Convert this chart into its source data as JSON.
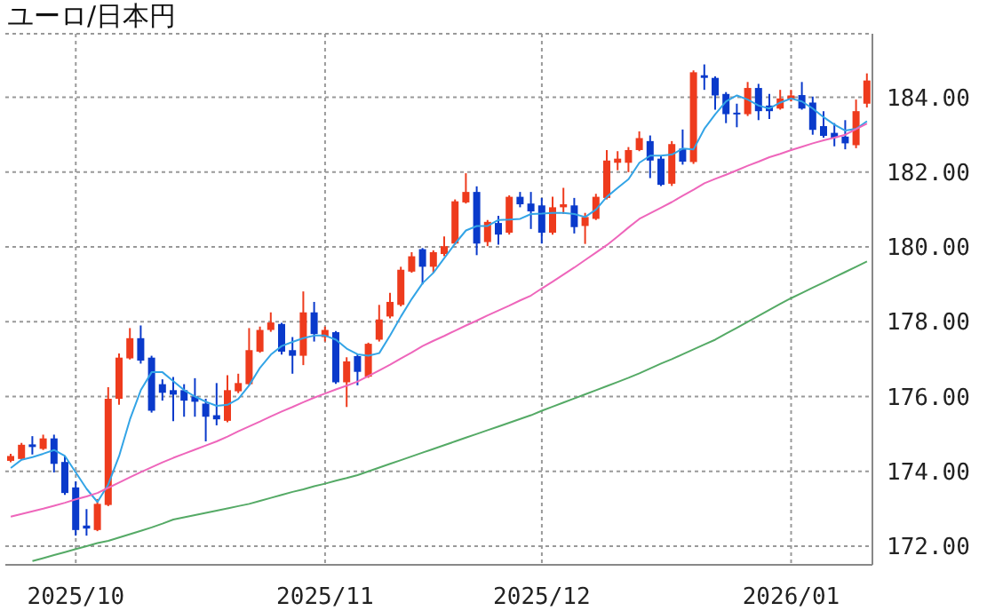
{
  "chart_data": {
    "type": "candlestick",
    "title": "ユーロ/日本円",
    "categories": [
      null,
      null,
      null,
      null,
      null,
      null,
      "2025/10",
      null,
      null,
      null,
      null,
      null,
      null,
      null,
      null,
      null,
      null,
      null,
      null,
      null,
      null,
      null,
      null,
      null,
      null,
      null,
      null,
      null,
      null,
      "2025/11",
      null,
      null,
      null,
      null,
      null,
      null,
      null,
      null,
      null,
      null,
      null,
      null,
      null,
      null,
      null,
      null,
      null,
      null,
      null,
      "2025/12",
      null,
      null,
      null,
      null,
      null,
      null,
      null,
      null,
      null,
      null,
      null,
      null,
      null,
      null,
      null,
      null,
      null,
      null,
      null,
      null,
      null,
      null,
      "2026/01",
      null,
      null,
      null,
      null,
      null,
      null,
      null
    ],
    "ylim": [
      171.5,
      185.7
    ],
    "yticks": [
      {
        "value": 172,
        "label": "172.00"
      },
      {
        "value": 174,
        "label": "174.00"
      },
      {
        "value": 176,
        "label": "176.00"
      },
      {
        "value": 178,
        "label": "178.00"
      },
      {
        "value": 180,
        "label": "180.00"
      },
      {
        "value": 182,
        "label": "182.00"
      },
      {
        "value": 184,
        "label": "184.00"
      }
    ],
    "grid": true,
    "series": [
      {
        "ohlc": [
          [
            174.28,
            174.47,
            174.24,
            174.41
          ],
          [
            174.33,
            174.76,
            174.3,
            174.71
          ],
          [
            174.72,
            174.94,
            174.45,
            174.65
          ],
          [
            174.6,
            174.98,
            174.57,
            174.88
          ],
          [
            174.88,
            174.98,
            173.97,
            174.2
          ],
          [
            174.25,
            174.41,
            173.37,
            173.42
          ],
          [
            173.57,
            173.73,
            172.28,
            172.43
          ],
          [
            172.55,
            172.99,
            172.28,
            172.47
          ],
          [
            172.43,
            173.26,
            172.4,
            173.13
          ],
          [
            173.1,
            176.25,
            173.07,
            175.94
          ],
          [
            175.94,
            177.15,
            175.78,
            177.04
          ],
          [
            177.02,
            177.83,
            176.99,
            177.56
          ],
          [
            177.56,
            177.9,
            176.88,
            176.96
          ],
          [
            177.04,
            177.09,
            175.57,
            175.62
          ],
          [
            176.33,
            176.46,
            175.89,
            176.1
          ],
          [
            176.17,
            176.52,
            175.34,
            176.05
          ],
          [
            176.17,
            176.33,
            175.46,
            175.89
          ],
          [
            176.0,
            176.49,
            175.46,
            175.86
          ],
          [
            175.81,
            175.94,
            174.8,
            175.46
          ],
          [
            175.5,
            176.36,
            175.23,
            175.39
          ],
          [
            175.35,
            176.57,
            175.31,
            176.17
          ],
          [
            176.14,
            176.61,
            176.09,
            176.36
          ],
          [
            176.33,
            177.83,
            176.3,
            177.24
          ],
          [
            177.2,
            177.87,
            177.17,
            177.78
          ],
          [
            177.78,
            178.25,
            177.73,
            177.98
          ],
          [
            177.94,
            177.97,
            177.12,
            177.2
          ],
          [
            177.24,
            177.59,
            176.61,
            177.09
          ],
          [
            177.09,
            178.81,
            176.84,
            178.25
          ],
          [
            178.25,
            178.53,
            177.47,
            177.67
          ],
          [
            177.59,
            177.87,
            177.47,
            177.78
          ],
          [
            177.72,
            177.75,
            176.34,
            176.38
          ],
          [
            176.38,
            177.05,
            175.72,
            176.94
          ],
          [
            177.08,
            177.13,
            176.3,
            176.66
          ],
          [
            176.53,
            177.44,
            176.5,
            177.41
          ],
          [
            177.52,
            178.45,
            177.47,
            178.06
          ],
          [
            178.14,
            178.77,
            178.09,
            178.53
          ],
          [
            178.45,
            179.47,
            178.41,
            179.39
          ],
          [
            179.34,
            179.86,
            179.31,
            179.75
          ],
          [
            179.94,
            179.97,
            179.0,
            179.47
          ],
          [
            179.47,
            179.91,
            179.31,
            179.86
          ],
          [
            179.81,
            180.28,
            179.75,
            180.02
          ],
          [
            180.09,
            181.27,
            180.06,
            181.22
          ],
          [
            181.19,
            181.97,
            181.16,
            181.47
          ],
          [
            181.47,
            181.62,
            179.78,
            180.09
          ],
          [
            180.13,
            180.72,
            180.02,
            180.67
          ],
          [
            180.64,
            180.83,
            180.06,
            180.33
          ],
          [
            180.38,
            181.38,
            180.33,
            181.34
          ],
          [
            181.34,
            181.47,
            181.06,
            181.14
          ],
          [
            181.16,
            181.47,
            180.48,
            180.95
          ],
          [
            181.11,
            181.31,
            180.09,
            180.38
          ],
          [
            180.38,
            181.34,
            180.33,
            181.06
          ],
          [
            181.06,
            181.58,
            180.88,
            181.14
          ],
          [
            181.11,
            181.31,
            180.36,
            180.53
          ],
          [
            180.56,
            180.91,
            180.08,
            180.8
          ],
          [
            180.75,
            181.42,
            180.72,
            181.34
          ],
          [
            181.31,
            182.59,
            181.27,
            182.31
          ],
          [
            182.25,
            182.56,
            182.05,
            182.36
          ],
          [
            182.25,
            182.67,
            182.0,
            182.59
          ],
          [
            182.59,
            183.09,
            182.56,
            182.91
          ],
          [
            182.83,
            182.98,
            181.84,
            182.31
          ],
          [
            182.36,
            182.44,
            181.63,
            181.66
          ],
          [
            181.69,
            182.83,
            181.63,
            182.75
          ],
          [
            182.63,
            183.14,
            182.2,
            182.28
          ],
          [
            182.27,
            184.72,
            182.22,
            184.67
          ],
          [
            184.59,
            184.88,
            184.2,
            184.52
          ],
          [
            184.52,
            184.56,
            183.67,
            184.05
          ],
          [
            184.09,
            184.14,
            183.31,
            183.55
          ],
          [
            183.59,
            183.83,
            183.2,
            183.55
          ],
          [
            183.55,
            184.41,
            183.5,
            184.25
          ],
          [
            184.25,
            184.36,
            183.39,
            183.63
          ],
          [
            183.78,
            184.09,
            183.42,
            183.63
          ],
          [
            183.7,
            184.2,
            183.67,
            183.97
          ],
          [
            183.94,
            184.2,
            183.89,
            184.05
          ],
          [
            184.06,
            184.41,
            183.67,
            183.7
          ],
          [
            183.86,
            184.02,
            183.0,
            183.13
          ],
          [
            183.23,
            183.63,
            182.92,
            182.97
          ],
          [
            183.05,
            183.31,
            182.69,
            182.92
          ],
          [
            182.95,
            183.39,
            182.61,
            182.77
          ],
          [
            182.72,
            183.94,
            182.64,
            183.63
          ],
          [
            183.83,
            184.64,
            183.73,
            184.45
          ]
        ],
        "colors": [
          "#ee3b1d",
          "#ee3b1d",
          "#0a3acb",
          "#ee3b1d",
          "#0a3acb",
          "#0a3acb",
          "#0a3acb",
          "#0a3acb",
          "#ee3b1d",
          "#ee3b1d",
          "#ee3b1d",
          "#ee3b1d",
          "#0a3acb",
          "#0a3acb",
          "#0a3acb",
          "#0a3acb",
          "#0a3acb",
          "#0a3acb",
          "#0a3acb",
          "#0a3acb",
          "#ee3b1d",
          "#ee3b1d",
          "#ee3b1d",
          "#ee3b1d",
          "#ee3b1d",
          "#0a3acb",
          "#0a3acb",
          "#ee3b1d",
          "#0a3acb",
          "#ee3b1d",
          "#0a3acb",
          "#ee3b1d",
          "#0a3acb",
          "#ee3b1d",
          "#ee3b1d",
          "#ee3b1d",
          "#ee3b1d",
          "#ee3b1d",
          "#0a3acb",
          "#ee3b1d",
          "#ee3b1d",
          "#ee3b1d",
          "#ee3b1d",
          "#0a3acb",
          "#ee3b1d",
          "#0a3acb",
          "#ee3b1d",
          "#0a3acb",
          "#0a3acb",
          "#0a3acb",
          "#ee3b1d",
          "#ee3b1d",
          "#0a3acb",
          "#ee3b1d",
          "#ee3b1d",
          "#ee3b1d",
          "#ee3b1d",
          "#ee3b1d",
          "#ee3b1d",
          "#0a3acb",
          "#0a3acb",
          "#ee3b1d",
          "#0a3acb",
          "#ee3b1d",
          "#0a3acb",
          "#0a3acb",
          "#0a3acb",
          "#0a3acb",
          "#ee3b1d",
          "#0a3acb",
          "#0a3acb",
          "#ee3b1d",
          "#ee3b1d",
          "#0a3acb",
          "#0a3acb",
          "#0a3acb",
          "#0a3acb",
          "#0a3acb",
          "#ee3b1d",
          "#ee3b1d"
        ]
      },
      {
        "type": "line",
        "color": "#33a4e6",
        "values": [
          174.09,
          174.31,
          174.38,
          174.47,
          174.57,
          174.41,
          173.97,
          173.53,
          173.18,
          173.65,
          174.41,
          175.39,
          176.17,
          176.65,
          176.65,
          176.41,
          176.17,
          176.0,
          175.86,
          175.75,
          175.78,
          175.94,
          176.3,
          176.77,
          177.12,
          177.35,
          177.46,
          177.56,
          177.63,
          177.63,
          177.52,
          177.28,
          177.13,
          177.09,
          177.16,
          177.63,
          178.14,
          178.61,
          179.03,
          179.31,
          179.7,
          180.09,
          180.44,
          180.56,
          180.56,
          180.72,
          180.73,
          180.75,
          180.88,
          180.89,
          180.91,
          180.91,
          180.88,
          180.8,
          181.0,
          181.34,
          181.58,
          181.81,
          182.25,
          182.44,
          182.44,
          182.47,
          182.63,
          182.61,
          183.16,
          183.55,
          183.89,
          184.05,
          183.94,
          183.78,
          183.7,
          183.86,
          183.97,
          183.89,
          183.7,
          183.47,
          183.27,
          183.11,
          183.16,
          183.36
        ]
      },
      {
        "type": "line",
        "color": "#ee66bb",
        "values": [
          172.79,
          172.86,
          172.93,
          173.0,
          173.08,
          173.16,
          173.25,
          173.33,
          173.42,
          173.56,
          173.7,
          173.84,
          173.98,
          174.11,
          174.24,
          174.36,
          174.47,
          174.58,
          174.69,
          174.8,
          174.93,
          175.07,
          175.2,
          175.33,
          175.47,
          175.6,
          175.72,
          175.85,
          175.97,
          176.08,
          176.19,
          176.29,
          176.4,
          176.55,
          176.7,
          176.85,
          177.02,
          177.18,
          177.35,
          177.49,
          177.62,
          177.76,
          177.9,
          178.03,
          178.17,
          178.3,
          178.43,
          178.57,
          178.7,
          178.89,
          179.07,
          179.26,
          179.45,
          179.65,
          179.85,
          180.05,
          180.28,
          180.52,
          180.75,
          180.9,
          181.05,
          181.2,
          181.37,
          181.53,
          181.7,
          181.82,
          181.93,
          182.05,
          182.17,
          182.28,
          182.4,
          182.49,
          182.59,
          182.68,
          182.77,
          182.85,
          182.92,
          183.0,
          183.15,
          183.3
        ]
      },
      {
        "type": "line",
        "color": "#55aa66",
        "values": [
          null,
          null,
          171.6,
          171.68,
          171.76,
          171.84,
          171.92,
          172.0,
          172.08,
          172.14,
          172.23,
          172.32,
          172.41,
          172.5,
          172.6,
          172.71,
          172.77,
          172.83,
          172.89,
          172.95,
          173.01,
          173.07,
          173.13,
          173.21,
          173.29,
          173.37,
          173.45,
          173.52,
          173.6,
          173.67,
          173.75,
          173.82,
          173.9,
          174.0,
          174.1,
          174.2,
          174.3,
          174.4,
          174.5,
          174.6,
          174.7,
          174.8,
          174.9,
          175.0,
          175.1,
          175.2,
          175.3,
          175.4,
          175.5,
          175.62,
          175.73,
          175.84,
          175.95,
          176.06,
          176.17,
          176.28,
          176.39,
          176.5,
          176.62,
          176.75,
          176.88,
          177.0,
          177.13,
          177.26,
          177.39,
          177.52,
          177.68,
          177.84,
          178.0,
          178.16,
          178.32,
          178.48,
          178.63,
          178.77,
          178.91,
          179.05,
          179.19,
          179.33,
          179.47,
          179.61
        ]
      }
    ]
  }
}
